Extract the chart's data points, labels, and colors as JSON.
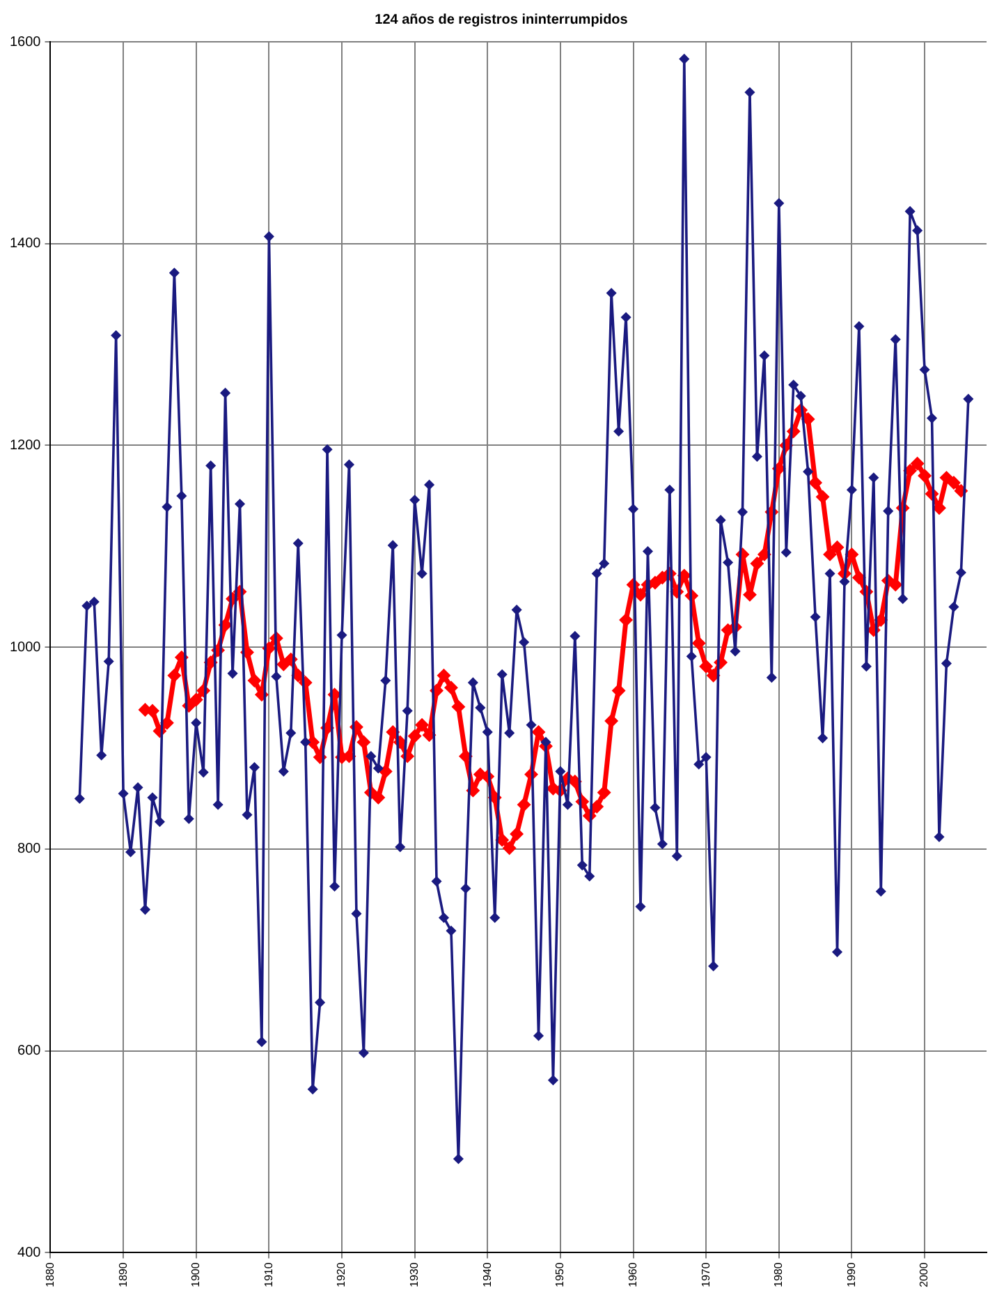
{
  "chart_data": {
    "type": "line",
    "title": "124 años de registros ininterrumpidos",
    "xlim": [
      1880,
      2008.5
    ],
    "xticks": [
      1880,
      1890,
      1900,
      1910,
      1920,
      1930,
      1940,
      1950,
      1960,
      1970,
      1980,
      1990,
      2000
    ],
    "ylim": [
      400,
      1600
    ],
    "yticks": [
      400,
      600,
      800,
      1000,
      1200,
      1400,
      1600
    ],
    "grid": true,
    "legend": false,
    "marker": "diamond",
    "line_style": "solid",
    "series": [
      {
        "color": "#1a1a80",
        "x": [
          1884,
          1885,
          1886,
          1887,
          1888,
          1889,
          1890,
          1891,
          1892,
          1893,
          1894,
          1895,
          1896,
          1897,
          1898,
          1899,
          1900,
          1901,
          1902,
          1903,
          1904,
          1905,
          1906,
          1907,
          1908,
          1909,
          1910,
          1911,
          1912,
          1913,
          1914,
          1915,
          1916,
          1917,
          1918,
          1919,
          1920,
          1921,
          1922,
          1923,
          1924,
          1925,
          1926,
          1927,
          1928,
          1929,
          1930,
          1931,
          1932,
          1933,
          1934,
          1935,
          1936,
          1937,
          1938,
          1939,
          1940,
          1941,
          1942,
          1943,
          1944,
          1945,
          1946,
          1947,
          1948,
          1949,
          1950,
          1951,
          1952,
          1953,
          1954,
          1955,
          1956,
          1957,
          1958,
          1959,
          1960,
          1961,
          1962,
          1963,
          1964,
          1965,
          1966,
          1967,
          1968,
          1969,
          1970,
          1971,
          1972,
          1973,
          1974,
          1975,
          1976,
          1977,
          1978,
          1979,
          1980,
          1981,
          1982,
          1983,
          1984,
          1985,
          1986,
          1987,
          1988,
          1989,
          1990,
          1991,
          1992,
          1993,
          1994,
          1995,
          1996,
          1997,
          1998,
          1999,
          2000,
          2001,
          2002,
          2003,
          2004,
          2005,
          2006
        ],
        "values": [
          850,
          1041,
          1045,
          893,
          986,
          1309,
          855,
          797,
          861,
          740,
          851,
          827,
          1139,
          1371,
          1150,
          830,
          925,
          876,
          1180,
          844,
          1252,
          974,
          1142,
          834,
          881,
          609,
          1407,
          971,
          877,
          915,
          1103,
          906,
          562,
          648,
          1196,
          763,
          1012,
          1181,
          736,
          598,
          892,
          880,
          967,
          1101,
          802,
          937,
          1146,
          1073,
          1161,
          768,
          732,
          719,
          493,
          761,
          965,
          940,
          916,
          732,
          973,
          915,
          1037,
          1005,
          923,
          615,
          906,
          571,
          877,
          844,
          1011,
          784,
          773,
          1073,
          1083,
          1351,
          1214,
          1327,
          1137,
          743,
          1095,
          841,
          805,
          1156,
          793,
          1583,
          991,
          884,
          891,
          684,
          1126,
          1084,
          996,
          1134,
          1550,
          1189,
          1289,
          970,
          1440,
          1094,
          1260,
          1249,
          1174,
          1030,
          910,
          1073,
          698,
          1065,
          1156,
          1318,
          981,
          1168,
          758,
          1135,
          1305,
          1048,
          1432,
          1413,
          1275,
          1227,
          812,
          984,
          1040,
          1074,
          1246
        ]
      },
      {
        "color": "#ff0000",
        "x": [
          1893,
          1894,
          1895,
          1896,
          1897,
          1898,
          1899,
          1900,
          1901,
          1902,
          1903,
          1904,
          1905,
          1906,
          1907,
          1908,
          1909,
          1910,
          1911,
          1912,
          1913,
          1914,
          1915,
          1916,
          1917,
          1918,
          1919,
          1920,
          1921,
          1922,
          1923,
          1924,
          1925,
          1926,
          1927,
          1928,
          1929,
          1930,
          1931,
          1932,
          1933,
          1934,
          1935,
          1936,
          1937,
          1938,
          1939,
          1940,
          1941,
          1942,
          1943,
          1944,
          1945,
          1946,
          1947,
          1948,
          1949,
          1950,
          1951,
          1952,
          1953,
          1954,
          1955,
          1956,
          1957,
          1958,
          1959,
          1960,
          1961,
          1962,
          1963,
          1964,
          1965,
          1966,
          1967,
          1968,
          1969,
          1970,
          1971,
          1972,
          1973,
          1974,
          1975,
          1976,
          1977,
          1978,
          1979,
          1980,
          1981,
          1982,
          1983,
          1984,
          1985,
          1986,
          1987,
          1988,
          1989,
          1990,
          1991,
          1992,
          1993,
          1994,
          1995,
          1996,
          1997,
          1998,
          1999,
          2000,
          2001,
          2002,
          2003,
          2004,
          2005
        ],
        "values": [
          938,
          937,
          917,
          925,
          972,
          990,
          942,
          948,
          957,
          985,
          997,
          1022,
          1048,
          1055,
          995,
          967,
          953,
          999,
          1009,
          983,
          988,
          972,
          965,
          906,
          891,
          920,
          953,
          891,
          892,
          921,
          906,
          856,
          851,
          877,
          916,
          906,
          892,
          912,
          923,
          913,
          957,
          972,
          960,
          941,
          892,
          858,
          874,
          872,
          851,
          809,
          801,
          815,
          844,
          874,
          916,
          902,
          860,
          858,
          870,
          867,
          847,
          833,
          842,
          856,
          927,
          957,
          1027,
          1062,
          1052,
          1062,
          1064,
          1069,
          1073,
          1055,
          1071,
          1051,
          1004,
          981,
          972,
          985,
          1017,
          1020,
          1092,
          1052,
          1083,
          1092,
          1134,
          1177,
          1200,
          1214,
          1235,
          1226,
          1163,
          1149,
          1092,
          1099,
          1073,
          1092,
          1069,
          1055,
          1017,
          1027,
          1066,
          1062,
          1138,
          1175,
          1182,
          1170,
          1152,
          1138,
          1168,
          1163,
          1155
        ]
      }
    ]
  }
}
